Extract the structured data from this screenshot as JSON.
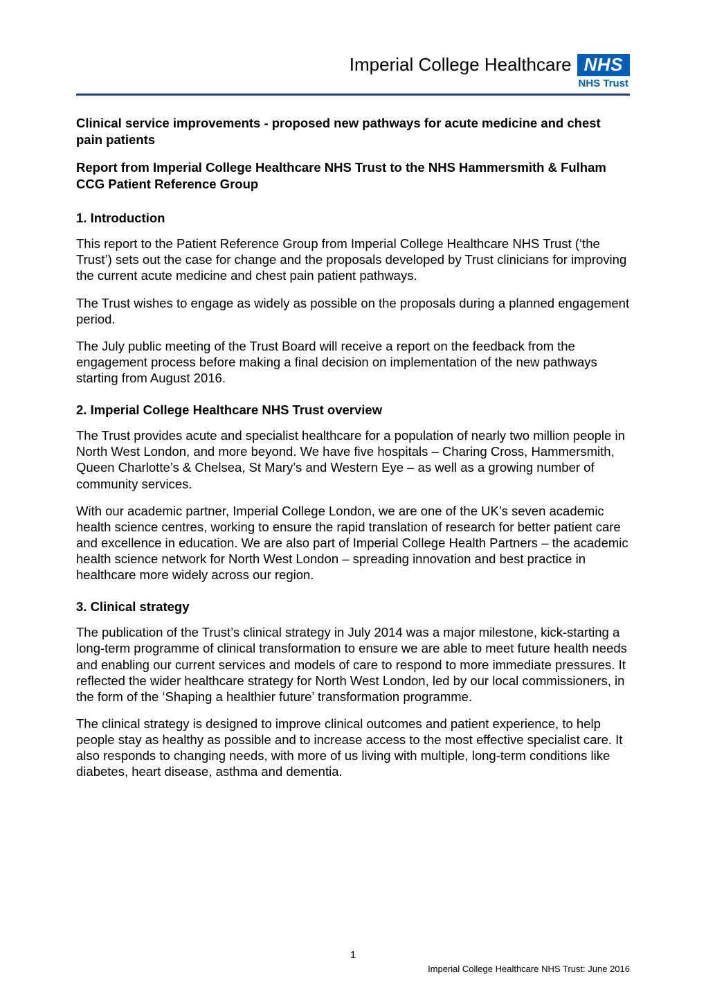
{
  "brand": {
    "text": "Imperial College Healthcare",
    "lozenge": "NHS",
    "sub": "NHS Trust",
    "lozenge_bg": "#005eb8",
    "lozenge_fg": "#ffffff",
    "sub_color": "#005eb8",
    "hr_color": "#1d427c"
  },
  "title": "Clinical service improvements - proposed new pathways for acute medicine and chest pain patients",
  "subtitle": "Report from Imperial College Healthcare NHS Trust to the NHS Hammersmith & Fulham CCG Patient Reference Group",
  "sections": [
    {
      "head": "1. Introduction",
      "paras": [
        "This report to the Patient Reference Group from Imperial College Healthcare NHS Trust (‘the Trust’) sets out the case for change and the proposals developed by Trust clinicians for improving the current acute medicine and chest pain patient pathways.",
        "The Trust wishes to engage as widely as possible on the proposals during a planned engagement period.",
        "The July public meeting of the Trust Board will receive a report on the feedback from the engagement process before making a final decision on implementation of the new pathways starting from August 2016."
      ]
    },
    {
      "head": "2. Imperial College Healthcare NHS Trust overview",
      "paras": [
        "The Trust provides acute and specialist healthcare for a population of nearly two million people in North West London, and more beyond. We have five hospitals – Charing Cross, Hammersmith, Queen Charlotte’s & Chelsea, St Mary’s and Western Eye – as well as a growing number of community services.",
        "With our academic partner, Imperial College London, we are one of the UK’s seven academic health science centres, working to ensure the rapid translation of research for better patient care and excellence in education. We are also part of Imperial College Health Partners – the academic health science network for North West London – spreading innovation and best practice in healthcare more widely across our region."
      ]
    },
    {
      "head": "3. Clinical strategy",
      "paras": [
        "The publication of the Trust’s clinical strategy in July 2014 was a major milestone, kick-starting a long-term programme of clinical transformation to ensure we are able to meet future health needs and enabling our current services and models of care to respond to more immediate pressures. It reflected the wider healthcare strategy for North West London, led by our local commissioners, in the form of the ‘Shaping a healthier future’ transformation programme.",
        "The clinical strategy is designed to improve clinical outcomes and patient experience, to help people stay as healthy as possible and to increase access to the most effective specialist care. It also responds to changing needs, with more of us living with multiple, long-term conditions like diabetes, heart disease, asthma and dementia."
      ]
    }
  ],
  "footer": {
    "page_num": "1",
    "right": "Imperial College Healthcare NHS Trust: June 2016"
  }
}
